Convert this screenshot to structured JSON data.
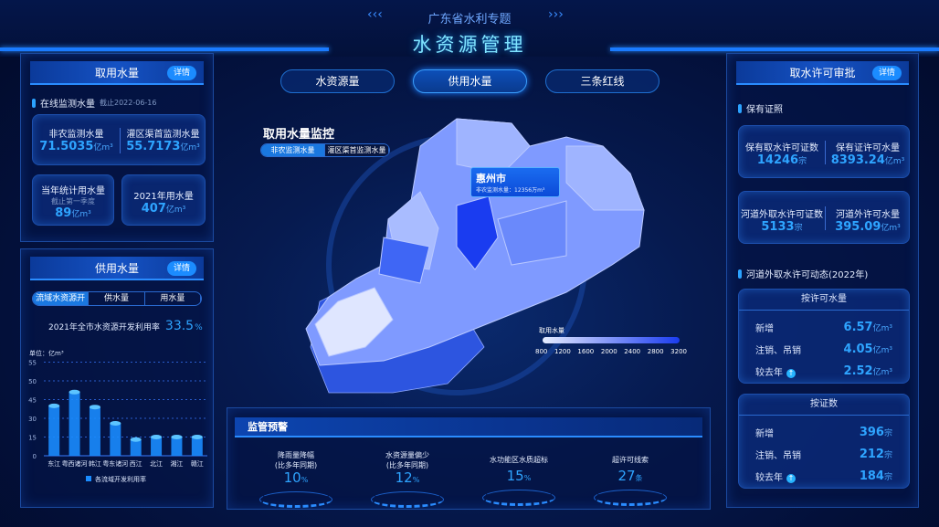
{
  "header": {
    "subtitle": "广东省水利专题",
    "title": "水资源管理"
  },
  "nav": [
    {
      "label": "水资源量"
    },
    {
      "label": "供用水量",
      "active": true
    },
    {
      "label": "三条红线"
    }
  ],
  "left_top": {
    "title": "取用水量",
    "detail": "详情",
    "section": "在线监测水量",
    "section_date": "截止2022-06-16",
    "items": [
      {
        "label": "非农监测水量",
        "value": "71.5035",
        "unit": "亿m³"
      },
      {
        "label": "灌区渠首监测水量",
        "value": "55.7173",
        "unit": "亿m³"
      },
      {
        "label": "当年统计用水量",
        "note": "截止第一季度",
        "value": "89",
        "unit": "亿m³"
      },
      {
        "label": "2021年用水量",
        "value": "407",
        "unit": "亿m³"
      }
    ]
  },
  "left_bottom": {
    "title": "供用水量",
    "detail": "详情",
    "tabs": [
      "流域水资源开发利用",
      "供水量",
      "用水量"
    ],
    "rate_label": "2021年全市水资源开发利用率",
    "rate_value": "33.5",
    "rate_unit": "%"
  },
  "chart_data": {
    "type": "bar",
    "ylabel": "单位：亿m³",
    "yticks": [
      0,
      15,
      30,
      45,
      50,
      55
    ],
    "categories": [
      "东江",
      "粤西诸河",
      "韩江",
      "粤东诸河",
      "西江",
      "北江",
      "湘江",
      "赣江"
    ],
    "series": [
      {
        "name": "各流域开发利用率",
        "values": [
          40,
          47,
          39,
          26,
          13,
          15,
          15,
          15
        ]
      }
    ],
    "grid": true,
    "legend": "bottom",
    "color": "#1a8cff"
  },
  "map": {
    "title": "取用水量监控",
    "tabs": [
      "非农监测水量",
      "灌区渠首监测水量"
    ],
    "tooltip_city": "惠州市",
    "tooltip_label": "非农监测水量：",
    "tooltip_value": "12356万m³",
    "legend_title": "取用水量",
    "legend_ticks": [
      "800",
      "1200",
      "1600",
      "2000",
      "2400",
      "2800",
      "3200"
    ]
  },
  "bottom": {
    "title": "监管预警",
    "items": [
      {
        "label": "降雨量降幅",
        "sub": "(比多年同期)",
        "value": "10",
        "unit": "%"
      },
      {
        "label": "水资源量偏少",
        "sub": "(比多年同期)",
        "value": "12",
        "unit": "%"
      },
      {
        "label": "水功能区水质超标",
        "sub": "",
        "value": "15",
        "unit": "%"
      },
      {
        "label": "超许可线索",
        "sub": "",
        "value": "27",
        "unit": "条"
      }
    ]
  },
  "right": {
    "title": "取水许可审批",
    "detail": "详情",
    "section1": "保有证照",
    "cards": [
      {
        "label": "保有取水许可证数",
        "value": "14246",
        "unit": "宗"
      },
      {
        "label": "保有证许可水量",
        "value": "8393.24",
        "unit": "亿m³"
      },
      {
        "label": "河道外取水许可证数",
        "value": "5133",
        "unit": "宗"
      },
      {
        "label": "河道外许可水量",
        "value": "395.09",
        "unit": "亿m³"
      }
    ],
    "section2": "河道外取水许可动态(2022年)",
    "box1": {
      "title": "按许可水量",
      "rows": [
        {
          "label": "新增",
          "value": "6.57",
          "unit": "亿m³"
        },
        {
          "label": "注销、吊销",
          "value": "4.05",
          "unit": "亿m³"
        },
        {
          "label": "较去年",
          "value": "2.52",
          "unit": "亿m³",
          "up": true
        }
      ]
    },
    "box2": {
      "title": "按证数",
      "rows": [
        {
          "label": "新增",
          "value": "396",
          "unit": "宗"
        },
        {
          "label": "注销、吊销",
          "value": "212",
          "unit": "宗"
        },
        {
          "label": "较去年",
          "value": "184",
          "unit": "宗",
          "up": true
        }
      ]
    }
  }
}
